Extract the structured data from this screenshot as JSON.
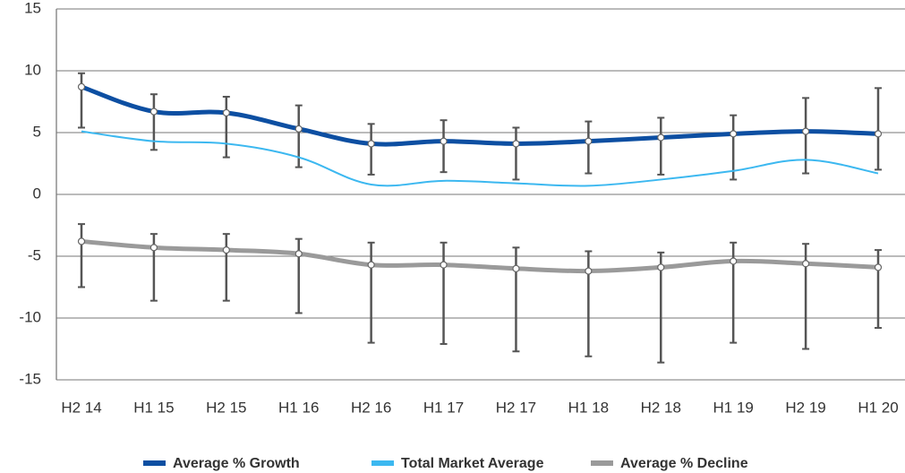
{
  "chart_data": {
    "type": "line",
    "categories": [
      "H2 14",
      "H1 15",
      "H2 15",
      "H1 16",
      "H2 16",
      "H1 17",
      "H2 17",
      "H1 18",
      "H2 18",
      "H1 19",
      "H2 19",
      "H1 20"
    ],
    "ylim": [
      -15,
      15
    ],
    "yticks": [
      15,
      10,
      5,
      0,
      -5,
      -10,
      -15
    ],
    "grid": true,
    "legend": "bottom",
    "series": [
      {
        "name": "Average % Growth",
        "color": "#0d4fa2",
        "markers": true,
        "values": [
          8.7,
          6.7,
          6.6,
          5.3,
          4.1,
          4.3,
          4.1,
          4.3,
          4.6,
          4.9,
          5.1,
          4.9
        ],
        "high": [
          9.8,
          8.1,
          7.9,
          7.2,
          5.7,
          6.0,
          5.4,
          5.9,
          6.2,
          6.4,
          7.8,
          8.6
        ],
        "low": [
          5.4,
          3.6,
          3.0,
          2.2,
          1.6,
          1.8,
          1.2,
          1.7,
          1.6,
          1.2,
          1.7,
          2.0
        ]
      },
      {
        "name": "Total Market Average",
        "color": "#3cb8f0",
        "markers": false,
        "values": [
          5.1,
          4.3,
          4.1,
          3.0,
          0.8,
          1.1,
          0.9,
          0.7,
          1.2,
          1.9,
          2.8,
          1.7
        ]
      },
      {
        "name": "Average % Decline",
        "color": "#9a9a9a",
        "markers": true,
        "values": [
          -3.8,
          -4.3,
          -4.5,
          -4.8,
          -5.7,
          -5.7,
          -6.0,
          -6.2,
          -5.9,
          -5.4,
          -5.6,
          -5.9
        ],
        "high": [
          -2.4,
          -3.2,
          -3.2,
          -3.6,
          -3.9,
          -3.9,
          -4.3,
          -4.6,
          -4.7,
          -3.9,
          -4.0,
          -4.5
        ],
        "low": [
          -7.5,
          -8.6,
          -8.6,
          -9.6,
          -12.0,
          -12.1,
          -12.7,
          -13.1,
          -13.6,
          -12.0,
          -12.5,
          -10.8
        ]
      }
    ]
  }
}
